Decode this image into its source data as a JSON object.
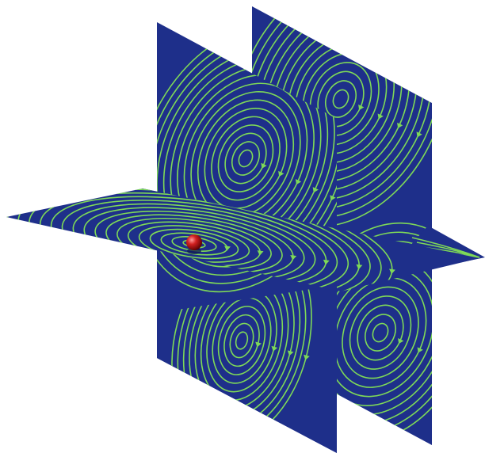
{
  "scene": {
    "background_color": "#ffffff",
    "plane_color": "#1e2f8a",
    "streamline_color": "#7ed957",
    "sphere_color": "#c81e1e",
    "planes": [
      {
        "name": "back-vertical-plane"
      },
      {
        "name": "front-vertical-plane"
      },
      {
        "name": "horizontal-plane"
      }
    ],
    "icons": [
      "streamline-arrow-icon",
      "charge-sphere-icon"
    ]
  }
}
